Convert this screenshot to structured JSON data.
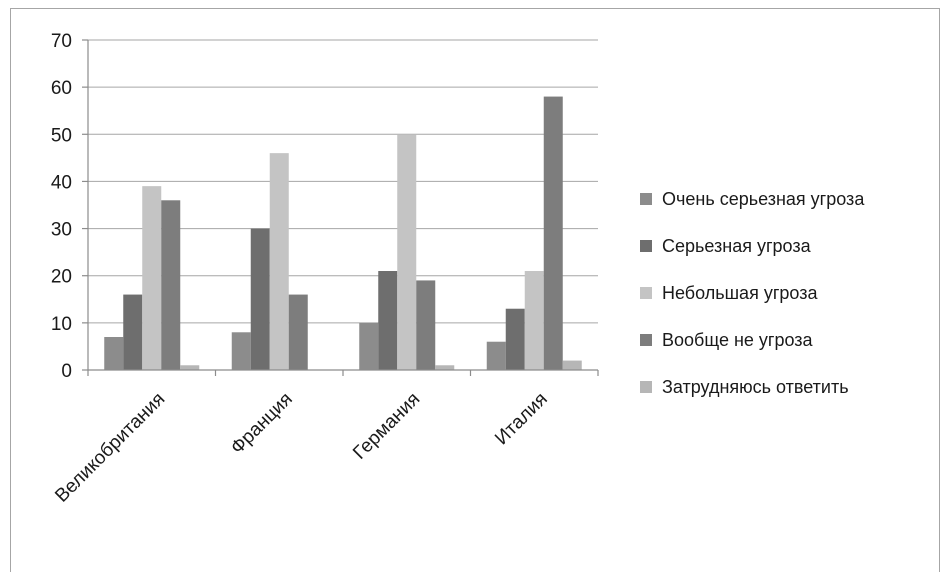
{
  "chart_data": {
    "type": "bar",
    "categories": [
      "Великобритания",
      "Франция",
      "Германия",
      "Италия"
    ],
    "series": [
      {
        "name": "Очень серьезная угроза",
        "color": "#8c8c8c",
        "values": [
          7,
          8,
          10,
          6
        ]
      },
      {
        "name": "Серьезная угроза",
        "color": "#6e6e6e",
        "values": [
          16,
          30,
          21,
          13
        ]
      },
      {
        "name": "Небольшая угроза",
        "color": "#c4c4c4",
        "values": [
          39,
          46,
          50,
          21
        ]
      },
      {
        "name": "Вообще не угроза",
        "color": "#7d7d7d",
        "values": [
          36,
          16,
          19,
          58
        ]
      },
      {
        "name": "Затрудняюсь ответить",
        "color": "#b6b6b6",
        "values": [
          1,
          0,
          1,
          2
        ]
      }
    ],
    "y_ticks": [
      0,
      10,
      20,
      30,
      40,
      50,
      60,
      70
    ],
    "ylim": [
      0,
      70
    ],
    "grid": true,
    "legend_position": "right"
  }
}
